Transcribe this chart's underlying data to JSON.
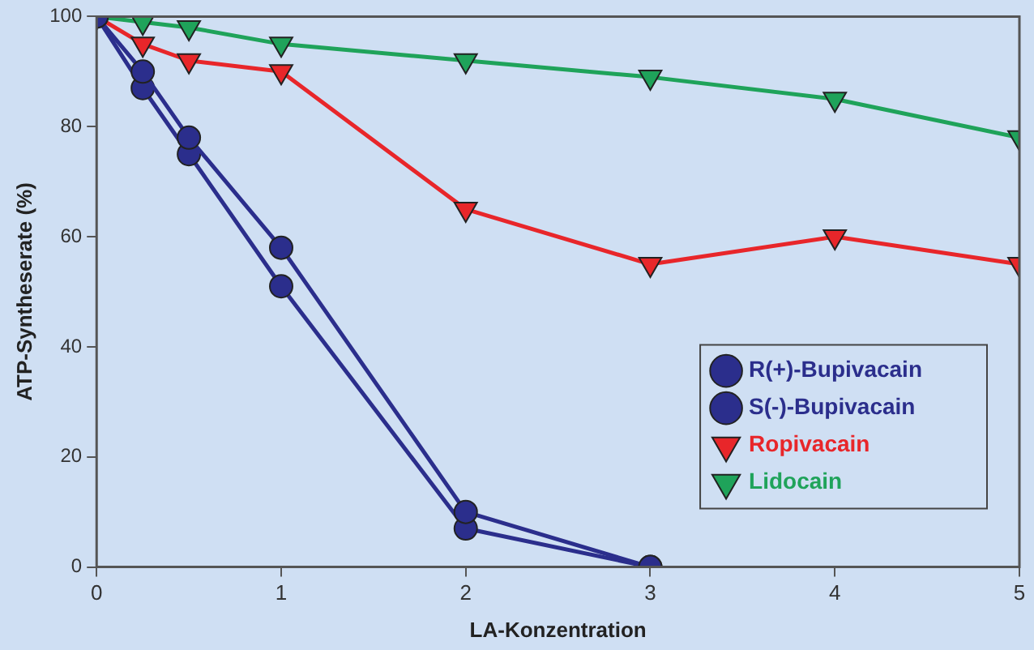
{
  "chart_data": {
    "type": "line",
    "xlabel": "LA-Konzentration",
    "ylabel": "ATP-Syntheserate (%)",
    "xlim": [
      0,
      5
    ],
    "xticks": [
      0,
      1,
      2,
      3,
      4,
      5
    ],
    "ylim": [
      0,
      100
    ],
    "yticks": [
      0,
      20,
      40,
      60,
      80,
      100
    ],
    "grid": false,
    "legend": "bottom right",
    "series": [
      {
        "name": "R(+)-Bupivacain",
        "color": "#2b2e8c",
        "marker": "circle",
        "x": [
          0,
          0.25,
          0.5,
          1,
          2,
          3
        ],
        "values": [
          100,
          90,
          78,
          58,
          10,
          0
        ]
      },
      {
        "name": "S(-)-Bupivacain",
        "color": "#2b2e8c",
        "marker": "circle",
        "x": [
          0,
          0.25,
          0.5,
          1,
          2,
          3
        ],
        "values": [
          100,
          87,
          75,
          51,
          7,
          0
        ]
      },
      {
        "name": "Ropivacain",
        "color": "#e8262a",
        "marker": "triangle",
        "x": [
          0,
          0.25,
          0.5,
          1,
          2,
          3,
          4,
          5
        ],
        "values": [
          100,
          95,
          92,
          90,
          65,
          55,
          60,
          55
        ]
      },
      {
        "name": "Lidocain",
        "color": "#1fa35a",
        "marker": "triangle",
        "x": [
          0,
          0.25,
          0.5,
          1,
          2,
          3,
          4,
          5
        ],
        "values": [
          100,
          99,
          98,
          95,
          92,
          89,
          85,
          78
        ]
      }
    ]
  }
}
